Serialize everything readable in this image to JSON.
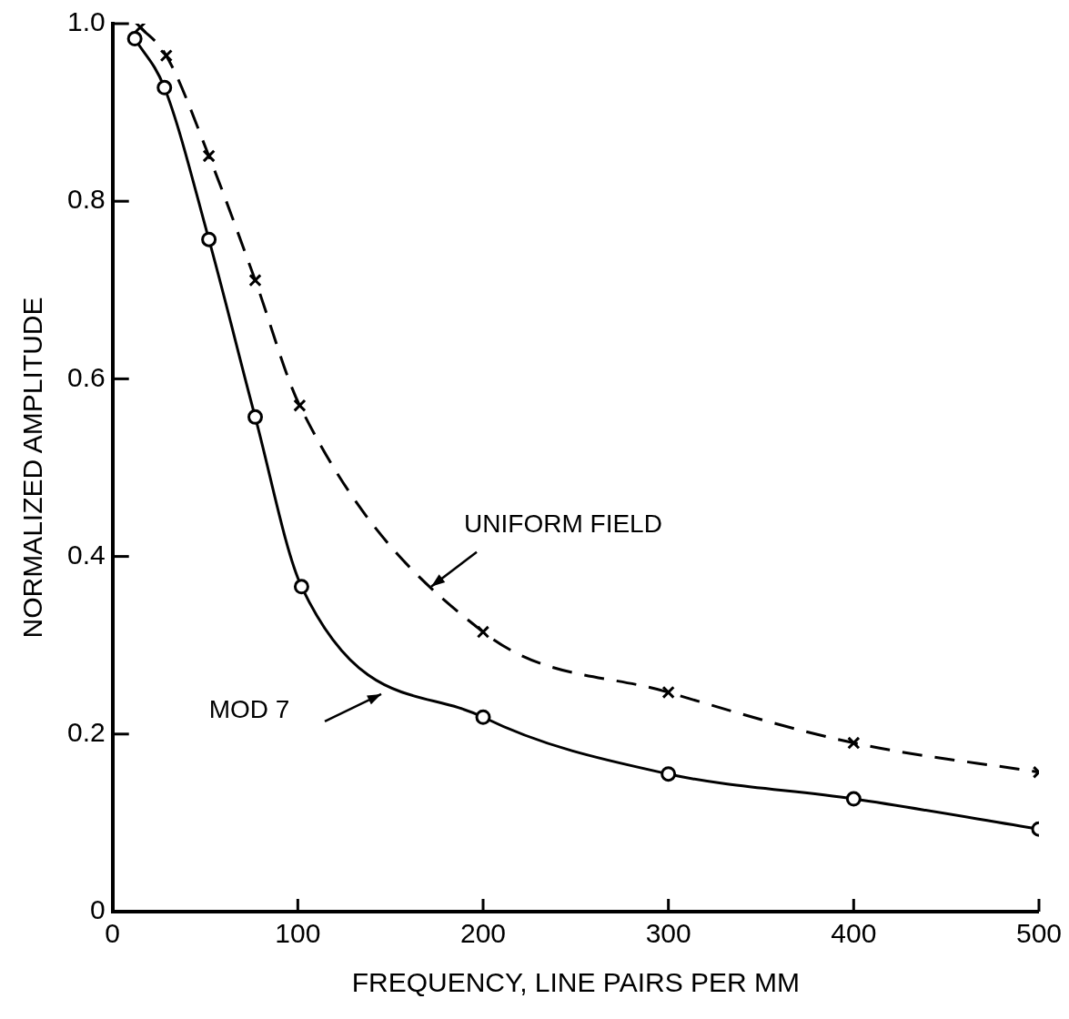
{
  "chart_data": {
    "type": "line",
    "xlabel": "FREQUENCY, LINE PAIRS PER MM",
    "ylabel": "NORMALIZED AMPLITUDE",
    "xlim": [
      0,
      500
    ],
    "ylim": [
      0,
      1
    ],
    "xticks": [
      0,
      100,
      200,
      300,
      400,
      500
    ],
    "yticks": [
      0,
      0.2,
      0.4,
      0.6,
      0.8,
      {
        "value": 1,
        "label": "1.0"
      }
    ],
    "grid": false,
    "legend": false,
    "series": [
      {
        "color": "#000000",
        "marker": "circle",
        "line_style": "solid",
        "x": [
          12,
          28,
          52,
          77,
          102,
          200,
          300,
          400,
          500
        ],
        "values": [
          0.983,
          0.928,
          0.757,
          0.557,
          0.366,
          0.219,
          0.155,
          0.127,
          0.093
        ]
      },
      {
        "color": "#000000",
        "marker": "cross",
        "line_style": "dashed",
        "x": [
          15,
          29,
          52,
          77,
          101,
          200,
          300,
          400,
          500
        ],
        "values": [
          0.996,
          0.964,
          0.851,
          0.711,
          0.57,
          0.315,
          0.247,
          0.19,
          0.157
        ]
      }
    ],
    "annotations": [
      {
        "text": "UNIFORM FIELD",
        "x": 172,
        "y": 0.366
      },
      "MOD 7"
    ]
  }
}
